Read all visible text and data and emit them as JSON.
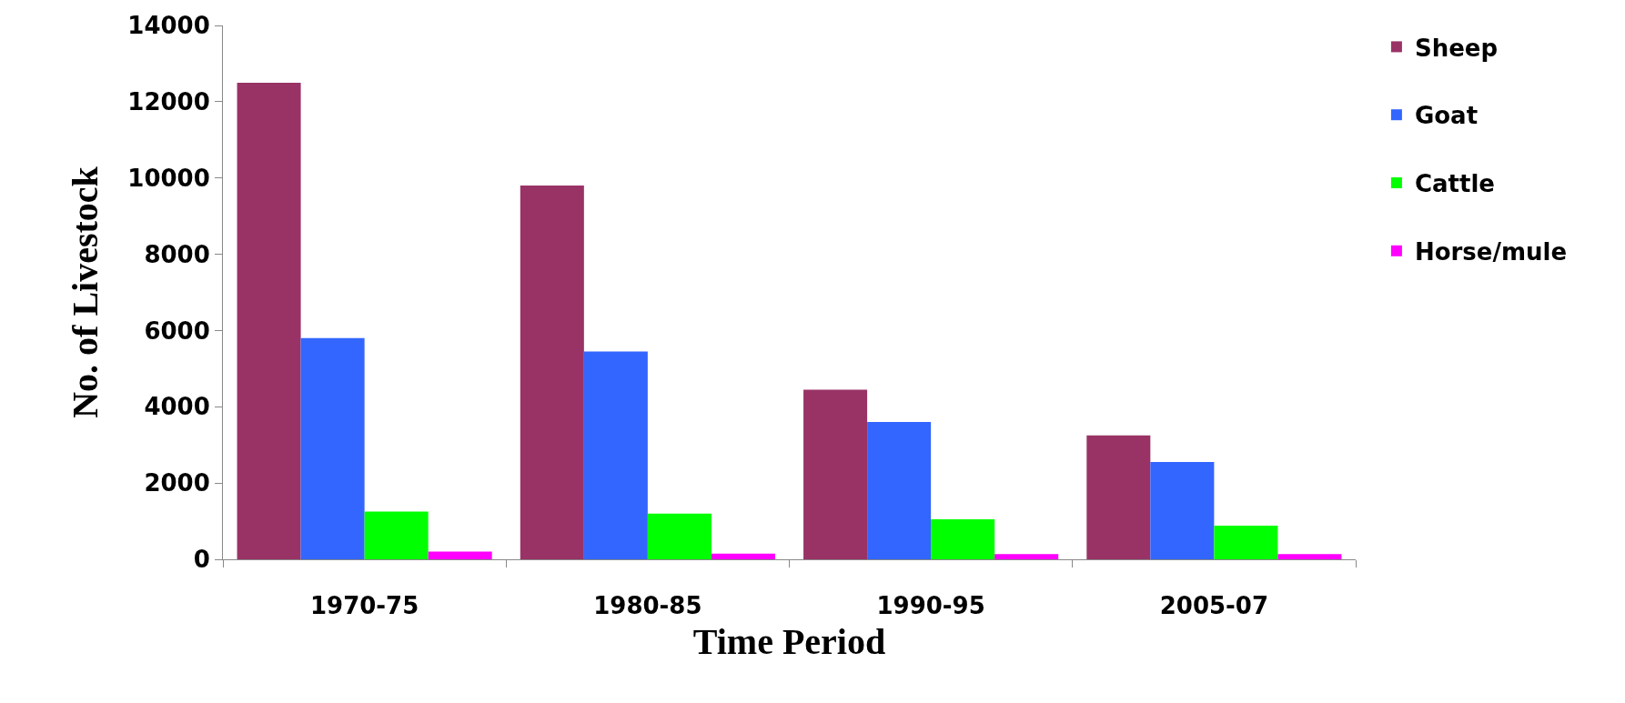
{
  "chart_data": {
    "type": "bar",
    "xlabel": "Time Period",
    "ylabel": "No. of Livestock",
    "categories": [
      "1970-75",
      "1980-85",
      "1990-95",
      "2005-07"
    ],
    "series": [
      {
        "name": "Sheep",
        "color": "#993366",
        "values": [
          12500,
          9800,
          4450,
          3250
        ]
      },
      {
        "name": "Goat",
        "color": "#3366ff",
        "values": [
          5800,
          5450,
          3600,
          2550
        ]
      },
      {
        "name": "Cattle",
        "color": "#00ff00",
        "values": [
          1250,
          1200,
          1050,
          880
        ]
      },
      {
        "name": "Horse/mule",
        "color": "#ff00ff",
        "values": [
          200,
          150,
          140,
          140
        ]
      }
    ],
    "ylim": [
      0,
      14000
    ],
    "yticks": [
      0,
      2000,
      4000,
      6000,
      8000,
      10000,
      12000,
      14000
    ],
    "legend": "top right"
  }
}
